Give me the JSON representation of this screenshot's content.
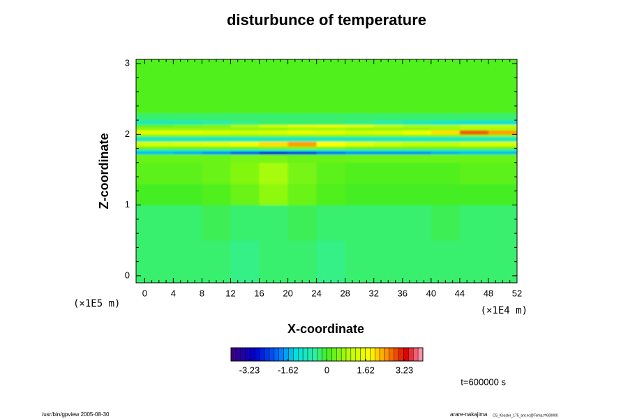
{
  "chart_data": {
    "type": "heatmap",
    "title": "disturbunce of temperature",
    "x_label": "X-coordinate",
    "y_label": "Z-coordinate",
    "x_unit": "(×1E4 m)",
    "y_unit": "(×1E5 m)",
    "time_label": "t=600000 s",
    "footer_left": "/usr/bin/gpview 2005-08-30",
    "footer_right": "arare-nakajima",
    "footer_right_small": "CS_Kessler_175_ant.nc@Temp,t=600000",
    "xlim": [
      -1.2,
      52
    ],
    "ylim": [
      -0.1,
      3.06
    ],
    "xticks": [
      0,
      4,
      8,
      12,
      16,
      20,
      24,
      28,
      32,
      36,
      40,
      44,
      48,
      52
    ],
    "yticks": [
      0,
      1,
      2,
      3
    ],
    "x_edges": [
      -1.2,
      4,
      8,
      12,
      16,
      20,
      24,
      28,
      32,
      36,
      40,
      44,
      48,
      52
    ],
    "y_edges": [
      -0.1,
      0.5,
      1.0,
      1.3,
      1.6,
      1.72,
      1.76,
      1.79,
      1.83,
      1.9,
      1.97,
      2.0,
      2.06,
      2.1,
      2.14,
      2.2,
      2.3,
      3.06
    ],
    "values": [
      [
        -0.3,
        -0.3,
        -0.3,
        -0.4,
        -0.3,
        -0.3,
        -0.4,
        -0.3,
        -0.3,
        -0.3,
        -0.3,
        -0.3,
        -0.3
      ],
      [
        -0.3,
        -0.3,
        -0.2,
        -0.3,
        -0.3,
        -0.2,
        -0.3,
        -0.3,
        -0.3,
        -0.3,
        -0.2,
        -0.3,
        -0.3
      ],
      [
        0,
        0,
        0.1,
        0.3,
        0.6,
        0.3,
        0.1,
        0,
        0,
        0,
        0,
        0,
        0
      ],
      [
        0.2,
        0.2,
        0.3,
        0.5,
        0.8,
        0.4,
        0.2,
        0.1,
        0.1,
        0.1,
        0.1,
        0.2,
        0.2
      ],
      [
        0.3,
        0.3,
        0.3,
        0.4,
        0.4,
        0.3,
        0.3,
        0.3,
        0.3,
        0.3,
        0.3,
        0.3,
        0.3
      ],
      [
        -1.5,
        -1.6,
        -1.8,
        -2.2,
        -2.8,
        -2.5,
        -2,
        -1.8,
        -1.8,
        -1.8,
        -1.6,
        -1.5,
        -1.5
      ],
      [
        -0.8,
        -0.8,
        -0.8,
        -0.9,
        -1,
        -0.9,
        -0.8,
        -0.8,
        -0.8,
        -0.8,
        -0.8,
        -0.8,
        -0.8
      ],
      [
        0.3,
        0.3,
        0.3,
        0.3,
        0.4,
        0.5,
        0.4,
        0.3,
        0.3,
        0.3,
        0.3,
        0.3,
        0.3
      ],
      [
        1.2,
        1.3,
        1.4,
        1.6,
        2.0,
        2.4,
        1.8,
        1.4,
        1.2,
        1.0,
        1.0,
        1.2,
        1.3
      ],
      [
        -0.8,
        -0.8,
        -0.8,
        -0.8,
        -0.8,
        -0.8,
        -0.8,
        -0.8,
        -0.8,
        -0.8,
        -0.8,
        -0.8,
        -0.8
      ],
      [
        0.5,
        0.5,
        0.5,
        0.5,
        0.5,
        0.5,
        0.5,
        0.5,
        0.5,
        0.5,
        0.5,
        0.6,
        0.6
      ],
      [
        1.4,
        1.4,
        1.3,
        1.2,
        1.3,
        1.5,
        1.4,
        1.2,
        1.3,
        1.6,
        2.0,
        2.8,
        2.4
      ],
      [
        0.6,
        0.6,
        0.6,
        0.6,
        0.6,
        0.7,
        0.7,
        0.6,
        0.6,
        0.6,
        0.7,
        0.8,
        0.8
      ],
      [
        0.3,
        0.4,
        0.5,
        0.8,
        1.2,
        1.5,
        1.6,
        1.4,
        1.0,
        0.8,
        0.8,
        1.0,
        1.0
      ],
      [
        -0.8,
        -0.7,
        -0.6,
        -0.4,
        -0.3,
        -0.3,
        -0.3,
        -0.4,
        -0.6,
        -0.8,
        -1,
        -1.1,
        -1.1
      ],
      [
        -0.3,
        -0.3,
        -0.3,
        -0.3,
        -0.3,
        -0.3,
        -0.3,
        -0.3,
        -0.3,
        -0.3,
        -0.3,
        -0.3,
        -0.3
      ],
      [
        0.1,
        0.1,
        0.1,
        0.1,
        0.1,
        0.1,
        0.1,
        0.1,
        0.1,
        0.1,
        0.1,
        0.1,
        0.1
      ]
    ],
    "clim": [
      -4,
      4
    ],
    "colorbar_ticks": [
      -3.23,
      -1.62,
      0,
      1.62,
      3.23
    ],
    "colorbar_levels": 40,
    "colorscale": [
      [
        -4,
        "#400080"
      ],
      [
        -3,
        "#0000d0"
      ],
      [
        -2,
        "#0070ff"
      ],
      [
        -1.3,
        "#00e0e0"
      ],
      [
        -0.5,
        "#30f0a0"
      ],
      [
        0,
        "#44ee22"
      ],
      [
        1,
        "#c0ff00"
      ],
      [
        1.8,
        "#ffff00"
      ],
      [
        2.5,
        "#ff9000"
      ],
      [
        3.3,
        "#e00000"
      ],
      [
        4,
        "#ffa8c8"
      ]
    ]
  }
}
